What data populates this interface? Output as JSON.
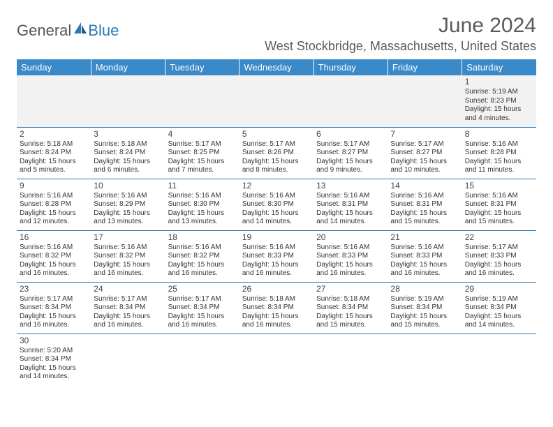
{
  "logo": {
    "text1": "General",
    "text2": "Blue",
    "accent_color": "#2a7ab8"
  },
  "title": "June 2024",
  "location": "West Stockbridge, Massachusetts, United States",
  "header_bg": "#3a89c9",
  "day_headers": [
    "Sunday",
    "Monday",
    "Tuesday",
    "Wednesday",
    "Thursday",
    "Friday",
    "Saturday"
  ],
  "weeks": [
    [
      null,
      null,
      null,
      null,
      null,
      null,
      {
        "n": "1",
        "sr": "5:19 AM",
        "ss": "8:23 PM",
        "dl": "15 hours and 4 minutes."
      }
    ],
    [
      {
        "n": "2",
        "sr": "5:18 AM",
        "ss": "8:24 PM",
        "dl": "15 hours and 5 minutes."
      },
      {
        "n": "3",
        "sr": "5:18 AM",
        "ss": "8:24 PM",
        "dl": "15 hours and 6 minutes."
      },
      {
        "n": "4",
        "sr": "5:17 AM",
        "ss": "8:25 PM",
        "dl": "15 hours and 7 minutes."
      },
      {
        "n": "5",
        "sr": "5:17 AM",
        "ss": "8:26 PM",
        "dl": "15 hours and 8 minutes."
      },
      {
        "n": "6",
        "sr": "5:17 AM",
        "ss": "8:27 PM",
        "dl": "15 hours and 9 minutes."
      },
      {
        "n": "7",
        "sr": "5:17 AM",
        "ss": "8:27 PM",
        "dl": "15 hours and 10 minutes."
      },
      {
        "n": "8",
        "sr": "5:16 AM",
        "ss": "8:28 PM",
        "dl": "15 hours and 11 minutes."
      }
    ],
    [
      {
        "n": "9",
        "sr": "5:16 AM",
        "ss": "8:28 PM",
        "dl": "15 hours and 12 minutes."
      },
      {
        "n": "10",
        "sr": "5:16 AM",
        "ss": "8:29 PM",
        "dl": "15 hours and 13 minutes."
      },
      {
        "n": "11",
        "sr": "5:16 AM",
        "ss": "8:30 PM",
        "dl": "15 hours and 13 minutes."
      },
      {
        "n": "12",
        "sr": "5:16 AM",
        "ss": "8:30 PM",
        "dl": "15 hours and 14 minutes."
      },
      {
        "n": "13",
        "sr": "5:16 AM",
        "ss": "8:31 PM",
        "dl": "15 hours and 14 minutes."
      },
      {
        "n": "14",
        "sr": "5:16 AM",
        "ss": "8:31 PM",
        "dl": "15 hours and 15 minutes."
      },
      {
        "n": "15",
        "sr": "5:16 AM",
        "ss": "8:31 PM",
        "dl": "15 hours and 15 minutes."
      }
    ],
    [
      {
        "n": "16",
        "sr": "5:16 AM",
        "ss": "8:32 PM",
        "dl": "15 hours and 16 minutes."
      },
      {
        "n": "17",
        "sr": "5:16 AM",
        "ss": "8:32 PM",
        "dl": "15 hours and 16 minutes."
      },
      {
        "n": "18",
        "sr": "5:16 AM",
        "ss": "8:32 PM",
        "dl": "15 hours and 16 minutes."
      },
      {
        "n": "19",
        "sr": "5:16 AM",
        "ss": "8:33 PM",
        "dl": "15 hours and 16 minutes."
      },
      {
        "n": "20",
        "sr": "5:16 AM",
        "ss": "8:33 PM",
        "dl": "15 hours and 16 minutes."
      },
      {
        "n": "21",
        "sr": "5:16 AM",
        "ss": "8:33 PM",
        "dl": "15 hours and 16 minutes."
      },
      {
        "n": "22",
        "sr": "5:17 AM",
        "ss": "8:33 PM",
        "dl": "15 hours and 16 minutes."
      }
    ],
    [
      {
        "n": "23",
        "sr": "5:17 AM",
        "ss": "8:34 PM",
        "dl": "15 hours and 16 minutes."
      },
      {
        "n": "24",
        "sr": "5:17 AM",
        "ss": "8:34 PM",
        "dl": "15 hours and 16 minutes."
      },
      {
        "n": "25",
        "sr": "5:17 AM",
        "ss": "8:34 PM",
        "dl": "15 hours and 16 minutes."
      },
      {
        "n": "26",
        "sr": "5:18 AM",
        "ss": "8:34 PM",
        "dl": "15 hours and 16 minutes."
      },
      {
        "n": "27",
        "sr": "5:18 AM",
        "ss": "8:34 PM",
        "dl": "15 hours and 15 minutes."
      },
      {
        "n": "28",
        "sr": "5:19 AM",
        "ss": "8:34 PM",
        "dl": "15 hours and 15 minutes."
      },
      {
        "n": "29",
        "sr": "5:19 AM",
        "ss": "8:34 PM",
        "dl": "15 hours and 14 minutes."
      }
    ],
    [
      {
        "n": "30",
        "sr": "5:20 AM",
        "ss": "8:34 PM",
        "dl": "15 hours and 14 minutes."
      },
      null,
      null,
      null,
      null,
      null,
      null
    ]
  ],
  "labels": {
    "sunrise": "Sunrise: ",
    "sunset": "Sunset: ",
    "daylight": "Daylight: "
  }
}
